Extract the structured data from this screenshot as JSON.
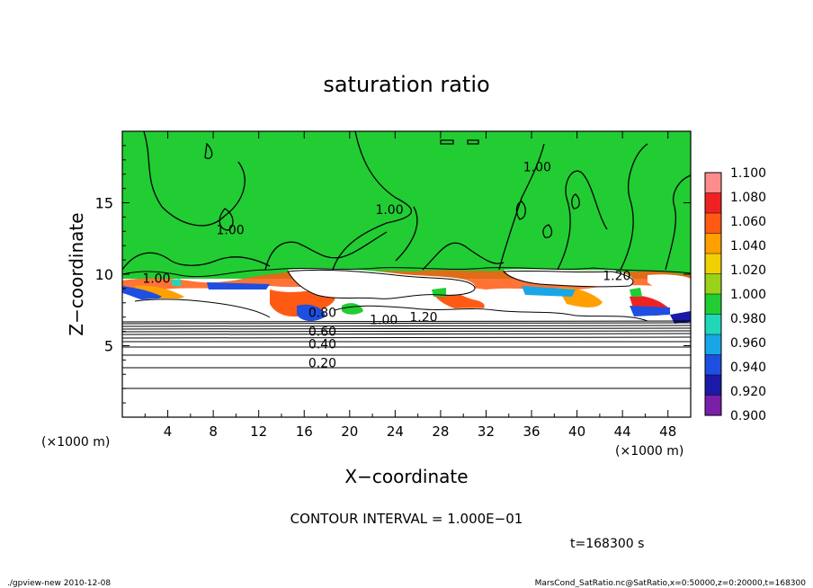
{
  "chart_data": {
    "type": "heatmap",
    "title": "saturation ratio",
    "xlabel": "X−coordinate",
    "ylabel": "Z−coordinate",
    "x_unit_left": "(×1000 m)",
    "x_unit_right": "(×1000 m)",
    "xlim": [
      0,
      50
    ],
    "ylim": [
      0,
      20
    ],
    "xticks": [
      "4",
      "8",
      "12",
      "16",
      "20",
      "24",
      "28",
      "32",
      "36",
      "40",
      "44",
      "48"
    ],
    "xtick_values": [
      4,
      8,
      12,
      16,
      20,
      24,
      28,
      32,
      36,
      40,
      44,
      48
    ],
    "yticks": [
      "5",
      "10",
      "15"
    ],
    "ytick_values": [
      5,
      10,
      15
    ],
    "colorbar": {
      "levels": [
        "0.900",
        "0.920",
        "0.940",
        "0.960",
        "0.980",
        "1.000",
        "1.020",
        "1.040",
        "1.060",
        "1.080",
        "1.100"
      ],
      "colors": [
        "#7a1fa8",
        "#1a1aa6",
        "#1f4fe0",
        "#1aa6e6",
        "#20d8b8",
        "#22cc33",
        "#9ad21a",
        "#f0d000",
        "#ffa000",
        "#ff5a14",
        "#ee2222",
        "#ff8c8c"
      ]
    },
    "contour_labels": [
      {
        "text": "1.00",
        "x": 23.5,
        "z": 14.2
      },
      {
        "text": "1.00",
        "x": 9.5,
        "z": 12.8
      },
      {
        "text": "1.00",
        "x": 36.5,
        "z": 17.2
      },
      {
        "text": "1.00",
        "x": 3.0,
        "z": 9.4
      },
      {
        "text": "1.20",
        "x": 43.5,
        "z": 9.6
      },
      {
        "text": "1.00",
        "x": 23.0,
        "z": 6.5
      },
      {
        "text": "1.20",
        "x": 26.5,
        "z": 6.7
      },
      {
        "text": "0.80",
        "x": 17.6,
        "z": 7.0
      },
      {
        "text": "0.60",
        "x": 17.6,
        "z": 5.7
      },
      {
        "text": "0.40",
        "x": 17.6,
        "z": 4.8
      },
      {
        "text": "0.20",
        "x": 17.6,
        "z": 3.5
      }
    ],
    "field": {
      "upper_layer": {
        "z_range": [
          10,
          20
        ],
        "value": 1.0
      },
      "cloud_layer": {
        "z_range": [
          6.2,
          10
        ],
        "value": "1.00 to 1.20"
      },
      "lower_layer": {
        "z_range": [
          0,
          6.2
        ],
        "contour_levels": [
          0.2,
          0.4,
          0.6,
          0.8
        ]
      }
    }
  },
  "contour_interval": "CONTOUR INTERVAL = 1.000E−01",
  "time_label": "t=168300 s",
  "footer_left": "./gpview-new   2010-12-08",
  "footer_right": "MarsCond_SatRatio.nc@SatRatio,x=0:50000,z=0:20000,t=168300"
}
